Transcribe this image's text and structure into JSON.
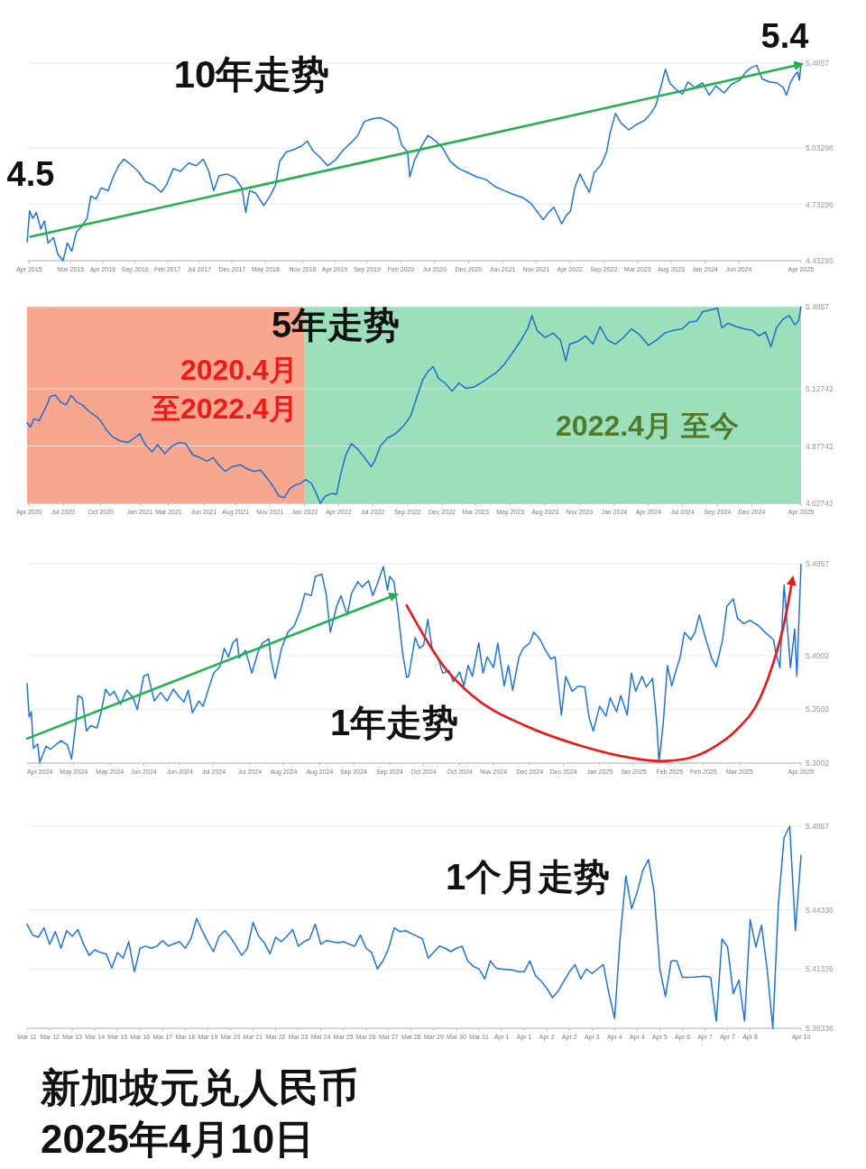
{
  "chart_data": [
    {
      "type": "line",
      "title": "10年走势",
      "x": [
        "2015-04-10",
        "2015-04-22",
        "2015-05-07",
        "2015-05-24",
        "2015-06-14",
        "2015-07-01",
        "2015-07-18",
        "2015-08-13",
        "2015-09-02",
        "2015-09-27",
        "2015-10-17",
        "2015-11-07",
        "2015-11-29",
        "2015-12-23",
        "2016-01-18",
        "2016-02-05",
        "2016-03-01",
        "2016-03-25",
        "2016-04-26",
        "2016-05-21",
        "2016-06-15",
        "2016-07-10",
        "2016-08-12",
        "2016-09-16",
        "2016-10-18",
        "2016-11-25",
        "2017-01-02",
        "2017-01-27",
        "2017-02-28",
        "2017-04-03",
        "2017-05-12",
        "2017-06-17",
        "2017-07-19",
        "2017-08-13",
        "2017-09-07",
        "2017-10-02",
        "2017-11-09",
        "2017-12-16",
        "2018-01-18",
        "2018-02-05",
        "2018-02-23",
        "2018-03-25",
        "2018-05-01",
        "2018-05-31",
        "2018-06-26",
        "2018-07-15",
        "2018-08-15",
        "2018-09-24",
        "2018-10-24",
        "2018-11-23",
        "2018-12-18",
        "2019-01-22",
        "2019-02-27",
        "2019-04-03",
        "2019-05-10",
        "2019-06-17",
        "2019-07-19",
        "2019-08-18",
        "2019-09-25",
        "2019-11-02",
        "2019-12-14",
        "2020-01-21",
        "2020-02-10",
        "2020-03-10",
        "2020-03-20",
        "2020-04-12",
        "2020-05-19",
        "2020-06-14",
        "2020-07-21",
        "2020-08-23",
        "2020-09-27",
        "2020-11-06",
        "2020-12-18",
        "2021-01-30",
        "2021-03-15",
        "2021-04-28",
        "2021-06-10",
        "2021-07-22",
        "2021-09-06",
        "2021-10-13",
        "2021-11-15",
        "2021-12-10",
        "2022-01-04",
        "2022-01-29",
        "2022-02-23",
        "2022-03-07",
        "2022-03-29",
        "2022-04-18",
        "2022-05-08",
        "2022-06-02",
        "2022-06-27",
        "2022-07-16",
        "2022-08-08",
        "2022-09-10",
        "2022-10-05",
        "2022-10-22",
        "2022-11-16",
        "2022-12-11",
        "2023-01-18",
        "2023-02-24",
        "2023-04-02",
        "2023-05-02",
        "2023-05-26",
        "2023-06-16",
        "2023-07-10",
        "2023-07-30",
        "2023-08-30",
        "2023-09-29",
        "2023-10-24",
        "2023-11-25",
        "2024-01-02",
        "2024-02-01",
        "2024-03-04",
        "2024-04-11",
        "2024-05-18",
        "2024-06-25",
        "2024-07-24",
        "2024-08-19",
        "2024-09-13",
        "2024-10-08",
        "2024-11-10",
        "2024-12-17",
        "2025-01-16",
        "2025-01-31",
        "2025-02-20",
        "2025-03-13",
        "2025-03-25",
        "2025-04-02",
        "2025-04-10"
      ],
      "series": [
        {
          "color": "#1a73e8",
          "values": [
            4.533,
            4.698,
            4.659,
            4.689,
            4.601,
            4.645,
            4.527,
            4.556,
            4.468,
            4.433,
            4.527,
            4.483,
            4.586,
            4.615,
            4.659,
            4.777,
            4.762,
            4.821,
            4.806,
            4.88,
            4.939,
            4.974,
            4.945,
            4.909,
            4.856,
            4.836,
            4.798,
            4.836,
            4.924,
            4.909,
            4.953,
            4.939,
            4.974,
            4.915,
            4.806,
            4.886,
            4.895,
            4.874,
            4.821,
            4.689,
            4.806,
            4.792,
            4.727,
            4.777,
            4.836,
            4.962,
            5.012,
            5.027,
            5.042,
            5.071,
            5.021,
            4.983,
            4.939,
            4.968,
            5.021,
            5.062,
            5.1,
            5.174,
            5.189,
            5.195,
            5.174,
            5.139,
            5.051,
            5.012,
            4.88,
            4.968,
            5.051,
            5.1,
            5.071,
            5.033,
            4.962,
            4.924,
            4.903,
            4.88,
            4.865,
            4.827,
            4.806,
            4.786,
            4.768,
            4.739,
            4.689,
            4.651,
            4.689,
            4.718,
            4.659,
            4.63,
            4.674,
            4.698,
            4.821,
            4.895,
            4.836,
            4.798,
            4.903,
            4.945,
            5.012,
            5.115,
            5.218,
            5.168,
            5.13,
            5.159,
            5.18,
            5.218,
            5.262,
            5.35,
            5.453,
            5.38,
            5.345,
            5.321,
            5.386,
            5.356,
            5.38,
            5.315,
            5.365,
            5.327,
            5.374,
            5.395,
            5.439,
            5.462,
            5.474,
            5.403,
            5.386,
            5.38,
            5.356,
            5.315,
            5.386,
            5.424,
            5.439,
            5.395,
            5.485
          ]
        },
        {
          "type": "line",
          "color": "#22b14c",
          "x": [
            "2015-04-25",
            "2025-04-10"
          ],
          "values": [
            4.56,
            5.48
          ]
        }
      ],
      "xlim": [
        "2015-04-10",
        "2025-04-10"
      ],
      "xticks": [
        {
          "value": "2015-04-20",
          "label": "Apr 2015"
        },
        {
          "value": "2015-11-01",
          "label": "Nov 2015"
        },
        {
          "value": "2016-04-01",
          "label": "Apr 2016"
        },
        {
          "value": "2016-09-01",
          "label": "Sep 2016"
        },
        {
          "value": "2017-02-01",
          "label": "Feb 2017"
        },
        {
          "value": "2017-07-01",
          "label": "Jul 2017"
        },
        {
          "value": "2017-12-03",
          "label": "Dec 2017"
        },
        {
          "value": "2018-05-10",
          "label": "May 2018"
        },
        {
          "value": "2018-11-01",
          "label": "Nov 2018"
        },
        {
          "value": "2019-04-01",
          "label": "Apr 2019"
        },
        {
          "value": "2019-09-01",
          "label": "Sep 2019"
        },
        {
          "value": "2020-02-08",
          "label": "Feb 2020"
        },
        {
          "value": "2020-07-15",
          "label": "Jul 2020"
        },
        {
          "value": "2020-12-23",
          "label": "Dec 2020"
        },
        {
          "value": "2021-06-01",
          "label": "Jun 2021"
        },
        {
          "value": "2021-11-07",
          "label": "Nov 2021"
        },
        {
          "value": "2022-04-15",
          "label": "Apr 2022"
        },
        {
          "value": "2022-09-22",
          "label": "Sep 2022"
        },
        {
          "value": "2023-03-01",
          "label": "Mar 2023"
        },
        {
          "value": "2023-08-06",
          "label": "Aug 2023"
        },
        {
          "value": "2024-01-13",
          "label": "Jan 2024"
        },
        {
          "value": "2024-06-20",
          "label": "Jun 2024"
        },
        {
          "value": "2025-04-10",
          "label": "Apr 2025"
        }
      ],
      "ylim": [
        4.43296,
        5.4857
      ],
      "yticks": [
        4.43296,
        4.73296,
        5.03296,
        5.4857
      ],
      "grid": "y",
      "annotations": [
        {
          "text": "4.5",
          "x": "2015-04-10",
          "y": 4.533
        },
        {
          "text": "5.4",
          "x": "2025-04-10",
          "y": 5.485
        }
      ]
    },
    {
      "type": "line",
      "title": "5年走势",
      "x": [
        "2020-04-10",
        "2020-04-18",
        "2020-04-26",
        "2020-05-09",
        "2020-05-17",
        "2020-05-27",
        "2020-06-03",
        "2020-06-16",
        "2020-06-28",
        "2020-07-11",
        "2020-07-23",
        "2020-08-06",
        "2020-08-18",
        "2020-09-04",
        "2020-09-22",
        "2020-10-02",
        "2020-10-14",
        "2020-10-29",
        "2020-11-15",
        "2020-12-04",
        "2020-12-19",
        "2021-01-01",
        "2021-01-14",
        "2021-01-30",
        "2021-02-12",
        "2021-03-01",
        "2021-03-17",
        "2021-04-03",
        "2021-04-19",
        "2021-05-06",
        "2021-05-23",
        "2021-06-08",
        "2021-06-23",
        "2021-07-06",
        "2021-07-21",
        "2021-08-07",
        "2021-08-26",
        "2021-09-10",
        "2021-09-27",
        "2021-10-13",
        "2021-10-28",
        "2021-11-12",
        "2021-11-25",
        "2021-12-08",
        "2021-12-20",
        "2022-01-02",
        "2022-01-15",
        "2022-01-28",
        "2022-02-10",
        "2022-02-20",
        "2022-03-03",
        "2022-03-15",
        "2022-03-30",
        "2022-04-10",
        "2022-04-20",
        "2022-05-02",
        "2022-05-15",
        "2022-05-30",
        "2022-06-15",
        "2022-07-01",
        "2022-07-10",
        "2022-07-22",
        "2022-08-08",
        "2022-08-27",
        "2022-09-15",
        "2022-10-02",
        "2022-10-17",
        "2022-10-30",
        "2022-11-11",
        "2022-11-24",
        "2022-12-07",
        "2022-12-22",
        "2023-01-08",
        "2023-01-24",
        "2023-02-09",
        "2023-02-27",
        "2023-03-17",
        "2023-04-05",
        "2023-04-24",
        "2023-05-12",
        "2023-05-31",
        "2023-06-20",
        "2023-07-06",
        "2023-07-15",
        "2023-07-27",
        "2023-08-15",
        "2023-09-03",
        "2023-09-20",
        "2023-10-03",
        "2023-10-12",
        "2023-10-31",
        "2023-11-19",
        "2023-12-06",
        "2023-12-23",
        "2024-01-09",
        "2024-01-28",
        "2024-02-16",
        "2024-03-06",
        "2024-03-24",
        "2024-04-15",
        "2024-05-05",
        "2024-05-23",
        "2024-06-12",
        "2024-07-04",
        "2024-07-20",
        "2024-08-07",
        "2024-08-20",
        "2024-09-06",
        "2024-09-25",
        "2024-10-05",
        "2024-10-20",
        "2024-11-08",
        "2024-11-27",
        "2024-12-16",
        "2025-01-01",
        "2025-01-16",
        "2025-01-29",
        "2025-02-11",
        "2025-02-26",
        "2025-03-13",
        "2025-03-26",
        "2025-04-04",
        "2025-04-10"
      ],
      "series": [
        {
          "color": "#1a6fd0",
          "values": [
            4.979,
            4.96,
            4.996,
            4.989,
            5.02,
            5.057,
            5.093,
            5.1,
            5.069,
            5.057,
            5.098,
            5.069,
            5.057,
            5.028,
            5.004,
            4.984,
            4.948,
            4.917,
            4.9,
            4.893,
            4.912,
            4.931,
            4.883,
            4.852,
            4.883,
            4.844,
            4.876,
            4.893,
            4.888,
            4.839,
            4.827,
            4.811,
            4.827,
            4.796,
            4.767,
            4.787,
            4.796,
            4.779,
            4.767,
            4.772,
            4.738,
            4.7,
            4.659,
            4.652,
            4.69,
            4.707,
            4.714,
            4.731,
            4.714,
            4.676,
            4.628,
            4.659,
            4.671,
            4.666,
            4.755,
            4.839,
            4.888,
            4.864,
            4.827,
            4.787,
            4.816,
            4.876,
            4.912,
            4.931,
            4.965,
            5.008,
            5.093,
            5.165,
            5.201,
            5.225,
            5.172,
            5.153,
            5.117,
            5.153,
            5.129,
            5.134,
            5.153,
            5.177,
            5.201,
            5.237,
            5.286,
            5.341,
            5.394,
            5.447,
            5.382,
            5.351,
            5.37,
            5.341,
            5.249,
            5.322,
            5.334,
            5.358,
            5.322,
            5.399,
            5.341,
            5.322,
            5.351,
            5.389,
            5.365,
            5.317,
            5.341,
            5.37,
            5.382,
            5.389,
            5.418,
            5.423,
            5.462,
            5.471,
            5.479,
            5.394,
            5.413,
            5.399,
            5.389,
            5.382,
            5.358,
            5.375,
            5.31,
            5.394,
            5.43,
            5.447,
            5.406,
            5.423,
            5.485
          ]
        }
      ],
      "xlim": [
        "2020-04-10",
        "2025-04-10"
      ],
      "xticks": [
        {
          "value": "2020-04-15",
          "label": "Apr 2020"
        },
        {
          "value": "2020-07-04",
          "label": "Jul 2020"
        },
        {
          "value": "2020-10-01",
          "label": "Oct 2020"
        },
        {
          "value": "2021-01-01",
          "label": "Jan 2021"
        },
        {
          "value": "2021-03-10",
          "label": "Mar 2021"
        },
        {
          "value": "2021-06-01",
          "label": "Jun 2021"
        },
        {
          "value": "2021-08-15",
          "label": "Aug 2021"
        },
        {
          "value": "2021-11-04",
          "label": "Nov 2021"
        },
        {
          "value": "2022-01-25",
          "label": "Jan 2022"
        },
        {
          "value": "2022-04-15",
          "label": "Apr 2022"
        },
        {
          "value": "2022-07-04",
          "label": "Jul 2022"
        },
        {
          "value": "2022-09-25",
          "label": "Sep 2022"
        },
        {
          "value": "2022-12-15",
          "label": "Dec 2022"
        },
        {
          "value": "2023-03-04",
          "label": "Mar 2023"
        },
        {
          "value": "2023-05-25",
          "label": "May 2023"
        },
        {
          "value": "2023-08-15",
          "label": "Aug 2023"
        },
        {
          "value": "2023-11-04",
          "label": "Nov 2023"
        },
        {
          "value": "2024-01-25",
          "label": "Jan 2024"
        },
        {
          "value": "2024-04-15",
          "label": "Apr 2024"
        },
        {
          "value": "2024-07-04",
          "label": "Jul 2024"
        },
        {
          "value": "2024-09-25",
          "label": "Sep 2024"
        },
        {
          "value": "2024-12-15",
          "label": "Dec 2024"
        },
        {
          "value": "2025-04-10",
          "label": "Apr 2025"
        }
      ],
      "ylim": [
        4.62742,
        5.4857
      ],
      "yticks": [
        4.62742,
        4.87742,
        5.12742,
        5.4857
      ],
      "grid": "y",
      "bands": [
        {
          "axis": "x",
          "from": "2020-04-10",
          "to": "2022-01-25",
          "label": "2020.4月至2022.4月",
          "color": "#f9a68e"
        },
        {
          "axis": "x",
          "from": "2022-01-25",
          "to": "2025-04-10",
          "label": "2022.4月 至今",
          "color": "#9bdfbb"
        }
      ]
    },
    {
      "type": "line",
      "title": "1年走势",
      "x": [
        "2024-04-10",
        "2024-04-11",
        "2024-04-12",
        "2024-04-13",
        "2024-04-15",
        "2024-04-16",
        "2024-04-19",
        "2024-04-21",
        "2024-04-24",
        "2024-04-26",
        "2024-04-29",
        "2024-05-01",
        "2024-05-03",
        "2024-05-04",
        "2024-05-06",
        "2024-05-08",
        "2024-05-10",
        "2024-05-13",
        "2024-05-15",
        "2024-05-17",
        "2024-05-19",
        "2024-05-21",
        "2024-05-24",
        "2024-05-27",
        "2024-05-30",
        "2024-06-01",
        "2024-06-04",
        "2024-06-06",
        "2024-06-09",
        "2024-06-12",
        "2024-06-15",
        "2024-06-18",
        "2024-06-21",
        "2024-06-23",
        "2024-06-25",
        "2024-06-27",
        "2024-06-30",
        "2024-07-02",
        "2024-07-05",
        "2024-07-07",
        "2024-07-10",
        "2024-07-12",
        "2024-07-14",
        "2024-07-16",
        "2024-07-18",
        "2024-07-19",
        "2024-07-22",
        "2024-07-25",
        "2024-07-28",
        "2024-07-30",
        "2024-08-02",
        "2024-08-03",
        "2024-08-05",
        "2024-08-08",
        "2024-08-11",
        "2024-08-14",
        "2024-08-17",
        "2024-08-19",
        "2024-08-22",
        "2024-08-24",
        "2024-08-27",
        "2024-08-29",
        "2024-08-31",
        "2024-09-03",
        "2024-09-05",
        "2024-09-08",
        "2024-09-10",
        "2024-09-13",
        "2024-09-15",
        "2024-09-18",
        "2024-09-20",
        "2024-09-22",
        "2024-09-25",
        "2024-09-27",
        "2024-09-28",
        "2024-09-30",
        "2024-10-02",
        "2024-10-04",
        "2024-10-06",
        "2024-10-07",
        "2024-10-10",
        "2024-10-12",
        "2024-10-14",
        "2024-10-16",
        "2024-10-18",
        "2024-10-21",
        "2024-10-23",
        "2024-10-26",
        "2024-10-28",
        "2024-10-31",
        "2024-11-02",
        "2024-11-04",
        "2024-11-06",
        "2024-11-09",
        "2024-11-11",
        "2024-11-13",
        "2024-11-16",
        "2024-11-18",
        "2024-11-21",
        "2024-11-23",
        "2024-11-25",
        "2024-11-28",
        "2024-11-30",
        "2024-12-03",
        "2024-12-05",
        "2024-12-08",
        "2024-12-10",
        "2024-12-13",
        "2024-12-15",
        "2024-12-18",
        "2024-12-20",
        "2024-12-23",
        "2024-12-26",
        "2024-12-29",
        "2024-12-31",
        "2025-01-02",
        "2025-01-05",
        "2025-01-08",
        "2025-01-10",
        "2025-01-13",
        "2025-01-15",
        "2025-01-18",
        "2025-01-20",
        "2025-01-22",
        "2025-01-25",
        "2025-01-27",
        "2025-01-30",
        "2025-02-01",
        "2025-02-02",
        "2025-02-04",
        "2025-02-06",
        "2025-02-08",
        "2025-02-10",
        "2025-02-12",
        "2025-02-14",
        "2025-02-17",
        "2025-02-19",
        "2025-02-21",
        "2025-02-24",
        "2025-02-27",
        "2025-03-01",
        "2025-03-04",
        "2025-03-06",
        "2025-03-09",
        "2025-03-11",
        "2025-03-14",
        "2025-03-17",
        "2025-03-21",
        "2025-03-24",
        "2025-03-28",
        "2025-03-29",
        "2025-03-31",
        "2025-04-02",
        "2025-04-04",
        "2025-04-05",
        "2025-04-07",
        "2025-04-08",
        "2025-04-10"
      ],
      "series": [
        {
          "color": "#1a73e8",
          "values": [
            5.374,
            5.343,
            5.348,
            5.314,
            5.318,
            5.301,
            5.316,
            5.313,
            5.318,
            5.321,
            5.317,
            5.304,
            5.337,
            5.363,
            5.361,
            5.33,
            5.335,
            5.333,
            5.348,
            5.369,
            5.363,
            5.367,
            5.355,
            5.368,
            5.361,
            5.35,
            5.381,
            5.383,
            5.358,
            5.366,
            5.358,
            5.369,
            5.361,
            5.357,
            5.368,
            5.347,
            5.358,
            5.353,
            5.372,
            5.384,
            5.39,
            5.407,
            5.399,
            5.412,
            5.416,
            5.398,
            5.405,
            5.384,
            5.404,
            5.412,
            5.416,
            5.397,
            5.379,
            5.407,
            5.422,
            5.428,
            5.443,
            5.458,
            5.456,
            5.474,
            5.476,
            5.458,
            5.422,
            5.446,
            5.456,
            5.438,
            5.458,
            5.469,
            5.464,
            5.47,
            5.456,
            5.466,
            5.483,
            5.461,
            5.474,
            5.469,
            5.44,
            5.404,
            5.38,
            5.381,
            5.417,
            5.407,
            5.41,
            5.434,
            5.407,
            5.397,
            5.384,
            5.386,
            5.376,
            5.385,
            5.372,
            5.391,
            5.381,
            5.412,
            5.384,
            5.399,
            5.389,
            5.412,
            5.372,
            5.391,
            5.368,
            5.399,
            5.407,
            5.412,
            5.422,
            5.415,
            5.407,
            5.397,
            5.399,
            5.345,
            5.381,
            5.367,
            5.372,
            5.371,
            5.343,
            5.33,
            5.353,
            5.344,
            5.361,
            5.348,
            5.363,
            5.345,
            5.384,
            5.367,
            5.381,
            5.371,
            5.379,
            5.337,
            5.301,
            5.337,
            5.391,
            5.372,
            5.386,
            5.399,
            5.422,
            5.415,
            5.422,
            5.438,
            5.416,
            5.397,
            5.39,
            5.415,
            5.446,
            5.453,
            5.435,
            5.43,
            5.433,
            5.428,
            5.422,
            5.415,
            5.404,
            5.389,
            5.466,
            5.415,
            5.389,
            5.425,
            5.381,
            5.485
          ]
        },
        {
          "type": "line",
          "color": "#22b14c",
          "x": [
            "2024-04-10",
            "2024-10-01"
          ],
          "values": [
            5.323,
            5.457
          ]
        },
        {
          "type": "line",
          "color": "#f01414",
          "x": [
            "2024-10-06",
            "2024-10-24",
            "2024-11-06",
            "2024-12-01",
            "2024-12-26",
            "2025-01-20",
            "2025-02-03",
            "2025-02-14",
            "2025-02-27",
            "2025-03-11",
            "2025-03-21",
            "2025-03-28",
            "2025-04-02",
            "2025-04-06"
          ],
          "values": [
            5.447,
            5.389,
            5.363,
            5.335,
            5.317,
            5.305,
            5.302,
            5.304,
            5.314,
            5.332,
            5.358,
            5.394,
            5.43,
            5.472
          ]
        }
      ],
      "xlim": [
        "2024-04-10",
        "2025-04-10"
      ],
      "xticks": [
        {
          "value": "2024-04-16",
          "label": "Apr 2024"
        },
        {
          "value": "2024-05-02",
          "label": "May 2024"
        },
        {
          "value": "2024-05-19",
          "label": "May 2024"
        },
        {
          "value": "2024-06-04",
          "label": "Jun 2024"
        },
        {
          "value": "2024-06-21",
          "label": "Jun 2024"
        },
        {
          "value": "2024-07-07",
          "label": "Jul 2024"
        },
        {
          "value": "2024-07-24",
          "label": "Jul 2024"
        },
        {
          "value": "2024-08-09",
          "label": "Aug 2024"
        },
        {
          "value": "2024-08-26",
          "label": "Aug 2024"
        },
        {
          "value": "2024-09-11",
          "label": "Sep 2024"
        },
        {
          "value": "2024-09-28",
          "label": "Sep 2024"
        },
        {
          "value": "2024-10-14",
          "label": "Oct 2024"
        },
        {
          "value": "2024-10-31",
          "label": "Oct 2024"
        },
        {
          "value": "2024-11-16",
          "label": "Nov 2024"
        },
        {
          "value": "2024-12-03",
          "label": "Dec 2024"
        },
        {
          "value": "2024-12-19",
          "label": "Dec 2024"
        },
        {
          "value": "2025-01-05",
          "label": "Jan 2025"
        },
        {
          "value": "2025-01-21",
          "label": "Jan 2025"
        },
        {
          "value": "2025-02-07",
          "label": "Feb 2025"
        },
        {
          "value": "2025-02-23",
          "label": "Feb 2025"
        },
        {
          "value": "2025-03-12",
          "label": "Mar 2025"
        },
        {
          "value": "2025-04-10",
          "label": "Apr 2025"
        }
      ],
      "ylim": [
        5.3002,
        5.4857
      ],
      "yticks": [
        5.3002,
        5.3502,
        5.4002,
        5.4857
      ],
      "grid": "y"
    },
    {
      "type": "line",
      "title": "1个月走势",
      "categories": [
        "Mar 11",
        null,
        null,
        null,
        "Mar 12",
        null,
        null,
        null,
        "Mar 13",
        null,
        null,
        null,
        "Mar 14",
        null,
        null,
        null,
        "Mar 15",
        null,
        null,
        null,
        "Mar 16",
        null,
        null,
        null,
        "Mar 17",
        null,
        null,
        null,
        "Mar 18",
        null,
        null,
        null,
        "Mar 19",
        null,
        null,
        null,
        "Mar 20",
        null,
        null,
        null,
        "Mar 21",
        null,
        null,
        null,
        "Mar 22",
        null,
        null,
        null,
        "Mar 23",
        null,
        null,
        null,
        "Mar 24",
        null,
        null,
        null,
        "Mar 25",
        null,
        null,
        null,
        "Mar 26",
        null,
        null,
        null,
        "Mar 27",
        null,
        null,
        null,
        "Mar 28",
        null,
        null,
        null,
        "Mar 29",
        null,
        null,
        null,
        "Mar 30",
        null,
        null,
        null,
        "Mar 31",
        null,
        null,
        null,
        "Apr 1",
        null,
        null,
        null,
        "Apr 1",
        null,
        null,
        null,
        "Apr 2",
        null,
        null,
        null,
        "Apr 2",
        null,
        null,
        null,
        "Apr 3",
        null,
        null,
        null,
        "Apr 4",
        null,
        null,
        null,
        "Apr 4",
        null,
        null,
        null,
        "Apr 5",
        null,
        null,
        null,
        "Apr 6",
        null,
        null,
        null,
        "Apr 7",
        null,
        null,
        null,
        "Apr 7",
        null,
        null,
        null,
        "Apr 8",
        null,
        null,
        null,
        null,
        null,
        null,
        null,
        null,
        "Apr 10"
      ],
      "series": [
        {
          "color": "#1a73e8",
          "values": [
            5.4361,
            5.4306,
            5.4295,
            5.4342,
            5.4259,
            5.4323,
            5.4239,
            5.4328,
            5.43,
            5.4334,
            5.4259,
            5.4203,
            5.4231,
            5.4217,
            5.4211,
            5.4139,
            5.4217,
            5.4189,
            5.4272,
            5.412,
            5.4239,
            5.425,
            5.4239,
            5.425,
            5.4278,
            5.425,
            5.4262,
            5.4272,
            5.4239,
            5.4286,
            5.4389,
            5.4328,
            5.4272,
            5.4222,
            5.43,
            5.4328,
            5.4295,
            5.425,
            5.4203,
            5.4239,
            5.437,
            5.43,
            5.4267,
            5.4211,
            5.4295,
            5.4272,
            5.43,
            5.4334,
            5.425,
            5.4272,
            5.4286,
            5.4361,
            5.4259,
            5.4278,
            5.4272,
            5.4267,
            5.4272,
            5.426,
            5.425,
            5.4306,
            5.4239,
            5.4217,
            5.4134,
            5.4175,
            5.4239,
            5.4342,
            5.4323,
            5.4328,
            5.4314,
            5.43,
            5.4286,
            5.4189,
            5.422,
            5.425,
            5.4239,
            5.4222,
            5.4239,
            5.425,
            5.4175,
            5.4147,
            5.4134,
            5.4084,
            5.4175,
            5.4139,
            5.4134,
            5.4131,
            5.4128,
            5.412,
            5.412,
            5.4175,
            5.41,
            5.4072,
            5.4036,
            5.3989,
            5.4022,
            5.4072,
            5.412,
            5.4156,
            5.4084,
            5.4134,
            5.4111,
            5.4134,
            5.4156,
            5.4009,
            5.3884,
            5.43,
            5.4606,
            5.4439,
            5.4523,
            5.4634,
            5.4689,
            5.4523,
            5.4134,
            5.3995,
            5.4175,
            5.4175,
            5.4092,
            5.4092,
            5.4093,
            5.4095,
            5.4097,
            5.4092,
            5.387,
            5.4286,
            5.4245,
            5.4009,
            5.4078,
            5.387,
            5.4384,
            5.4245,
            5.4356,
            5.4134,
            5.3834,
            5.4467,
            5.48,
            5.4857,
            5.4328,
            5.4711
          ]
        }
      ],
      "ylim": [
        5.38336,
        5.4857
      ],
      "yticks": [
        5.38336,
        5.41336,
        5.44336,
        5.4857
      ],
      "grid": "y",
      "annotations": [
        "新加坡元兑人民币",
        "2025年4月10日"
      ]
    }
  ]
}
